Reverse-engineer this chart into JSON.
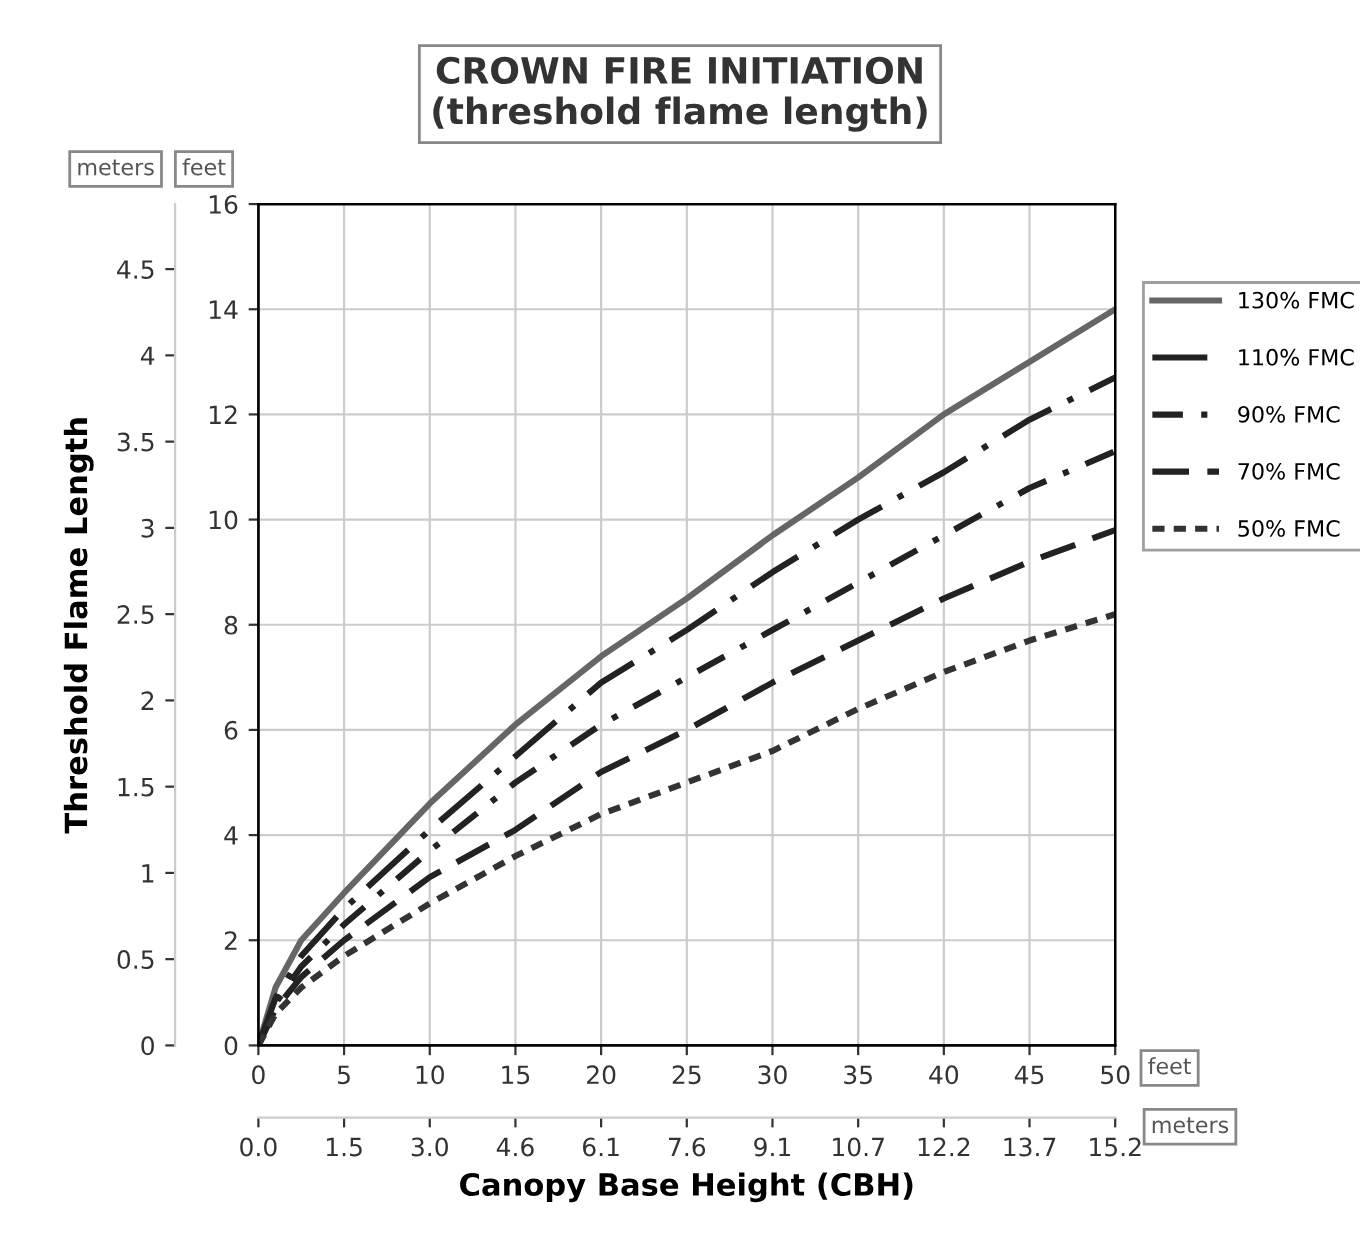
{
  "chart_data": {
    "type": "line",
    "title": "CROWN FIRE INITIATION\n(threshold flame length)",
    "xlabel": "Canopy Base Height (CBH)",
    "y2label": "Threshold Flame Length",
    "x": [
      0,
      1,
      2.5,
      5,
      10,
      15,
      20,
      25,
      30,
      35,
      40,
      45,
      50
    ],
    "series": [
      {
        "name": "130% FMC",
        "color": "#666666",
        "line_style": "solid",
        "values": [
          0,
          1.1,
          2.0,
          2.9,
          4.6,
          6.1,
          7.4,
          8.5,
          9.7,
          10.8,
          12.0,
          13.0,
          14.0
        ]
      },
      {
        "name": "110% FMC",
        "color": "#222222",
        "line_style": "longdashdot",
        "values": [
          0,
          0.9,
          1.7,
          2.6,
          4.1,
          5.5,
          6.9,
          7.9,
          9.0,
          10.0,
          10.9,
          11.9,
          12.7
        ]
      },
      {
        "name": "90% FMC",
        "color": "#222222",
        "line_style": "dashdot",
        "values": [
          0,
          0.8,
          1.5,
          2.3,
          3.7,
          5.0,
          6.1,
          7.0,
          7.9,
          8.8,
          9.7,
          10.6,
          11.3
        ]
      },
      {
        "name": "70% FMC",
        "color": "#222222",
        "line_style": "dashed",
        "values": [
          0,
          0.7,
          1.3,
          2.0,
          3.2,
          4.1,
          5.2,
          6.0,
          6.9,
          7.7,
          8.5,
          9.2,
          9.8
        ]
      },
      {
        "name": "50% FMC",
        "color": "#333333",
        "line_style": "dotted",
        "values": [
          0,
          0.6,
          1.1,
          1.7,
          2.7,
          3.6,
          4.4,
          5.0,
          5.6,
          6.4,
          7.1,
          7.7,
          8.2
        ]
      }
    ],
    "xlim": [
      0,
      50
    ],
    "xticks": [
      0,
      5,
      10,
      15,
      20,
      25,
      30,
      35,
      40,
      45,
      50
    ],
    "ylim": [
      0,
      16
    ],
    "yticks": [
      0,
      2,
      4,
      6,
      8,
      10,
      12,
      14,
      16
    ],
    "y2lim": [
      0,
      4.877
    ],
    "y2ticks": [
      0,
      0.5,
      1,
      1.5,
      2,
      2.5,
      3,
      3.5,
      4,
      4.5
    ],
    "x2lim": [
      0,
      15.24
    ],
    "x2ticks": [
      {
        "value": 0,
        "label": "0.0"
      },
      {
        "value": 1.524,
        "label": "1.5"
      },
      {
        "value": 3.048,
        "label": "3.0"
      },
      {
        "value": 4.572,
        "label": "4.6"
      },
      {
        "value": 6.096,
        "label": "6.1"
      },
      {
        "value": 7.62,
        "label": "7.6"
      },
      {
        "value": 9.144,
        "label": "9.1"
      },
      {
        "value": 10.668,
        "label": "10.7"
      },
      {
        "value": 12.192,
        "label": "12.2"
      },
      {
        "value": 13.716,
        "label": "13.7"
      },
      {
        "value": 15.24,
        "label": "15.2"
      }
    ],
    "annotations": [
      "meters",
      "feet",
      "feet",
      "meters"
    ],
    "grid": true,
    "legend": "right"
  }
}
